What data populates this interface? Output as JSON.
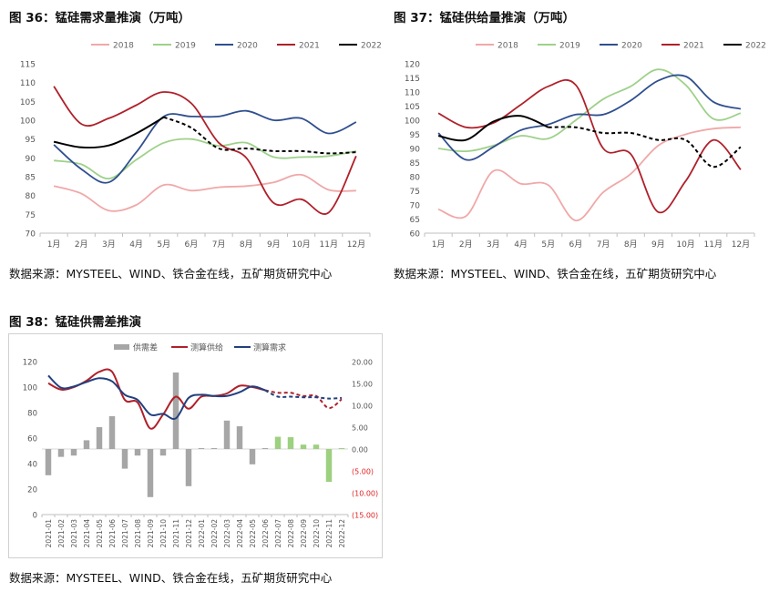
{
  "figures": {
    "fig36": {
      "title": "图 36：锰硅需求量推演（万吨）",
      "source": "数据来源：MYSTEEL、WIND、铁合金在线，五矿期货研究中心"
    },
    "fig37": {
      "title": "图 37：锰硅供给量推演（万吨）",
      "source": "数据来源：MYSTEEL、WIND、铁合金在线，五矿期货研究中心"
    },
    "fig38": {
      "title": "图 38：锰硅供需差推演",
      "source": "数据来源：MYSTEEL、WIND、铁合金在线，五矿期货研究中心"
    }
  },
  "colors": {
    "s2018": "#f0a8a8",
    "s2019": "#9ed18a",
    "s2020": "#2f4f8f",
    "s2021": "#b0202a",
    "s2022": "#000000",
    "bar_gray": "#a6a6a6",
    "bar_green": "#9dd07f",
    "supply": "#b0202a",
    "demand": "#22407f",
    "negative_tick": "#e02020",
    "axis_text": "#555555",
    "axis_line": "#bfbfbf"
  },
  "chart_data": [
    {
      "id": "fig36",
      "type": "line",
      "categories": [
        "1月",
        "2月",
        "3月",
        "4月",
        "5月",
        "6月",
        "7月",
        "8月",
        "9月",
        "10月",
        "11月",
        "12月"
      ],
      "ylim": [
        70,
        115
      ],
      "yticks": [
        70,
        75,
        80,
        85,
        90,
        95,
        100,
        105,
        110,
        115
      ],
      "legend": "top",
      "series": [
        {
          "name": "2018",
          "color_key": "s2018",
          "style": "solid",
          "values": [
            82.5,
            80.5,
            76.0,
            77.5,
            82.8,
            81.3,
            82.2,
            82.5,
            83.5,
            85.5,
            81.5,
            81.3
          ]
        },
        {
          "name": "2019",
          "color_key": "s2019",
          "style": "solid",
          "values": [
            89.3,
            88.3,
            84.5,
            89.5,
            94.0,
            95.0,
            93.2,
            94.0,
            90.2,
            90.2,
            90.5,
            91.8
          ]
        },
        {
          "name": "2020",
          "color_key": "s2020",
          "style": "solid",
          "values": [
            93.5,
            87.0,
            83.5,
            91.5,
            101.0,
            101.0,
            101.0,
            102.5,
            100.0,
            100.5,
            96.5,
            99.5
          ]
        },
        {
          "name": "2021",
          "color_key": "s2021",
          "style": "solid",
          "values": [
            109.0,
            99.0,
            100.5,
            104.0,
            107.5,
            104.5,
            94.0,
            90.0,
            78.0,
            79.0,
            75.5,
            90.5
          ]
        },
        {
          "name": "2022",
          "color_key": "s2022",
          "style": "solid_then_dash",
          "solid_until": 4,
          "values": [
            94.3,
            92.8,
            93.3,
            96.5,
            100.8,
            98.0,
            92.5,
            92.5,
            91.8,
            91.8,
            91.2,
            91.5
          ]
        }
      ]
    },
    {
      "id": "fig37",
      "type": "line",
      "categories": [
        "1月",
        "2月",
        "3月",
        "4月",
        "5月",
        "6月",
        "7月",
        "8月",
        "9月",
        "10月",
        "11月",
        "12月"
      ],
      "ylim": [
        60,
        120
      ],
      "yticks": [
        60,
        65,
        70,
        75,
        80,
        85,
        90,
        95,
        100,
        105,
        110,
        115,
        120
      ],
      "legend": "top",
      "series": [
        {
          "name": "2018",
          "color_key": "s2018",
          "style": "solid",
          "values": [
            68.5,
            66.0,
            82.0,
            77.5,
            77.0,
            64.5,
            74.5,
            81.0,
            91.0,
            95.0,
            97.0,
            97.5
          ]
        },
        {
          "name": "2019",
          "color_key": "s2019",
          "style": "solid",
          "values": [
            90.0,
            89.0,
            91.0,
            94.5,
            93.5,
            100.0,
            107.5,
            112.0,
            118.0,
            112.5,
            100.5,
            102.5
          ]
        },
        {
          "name": "2020",
          "color_key": "s2020",
          "style": "solid",
          "values": [
            95.5,
            86.0,
            90.5,
            96.5,
            98.5,
            102.0,
            102.0,
            107.0,
            114.0,
            115.5,
            106.5,
            104.0
          ]
        },
        {
          "name": "2021",
          "color_key": "s2021",
          "style": "solid",
          "values": [
            102.5,
            97.5,
            99.0,
            105.5,
            112.0,
            112.5,
            90.0,
            88.0,
            67.5,
            78.5,
            93.0,
            82.5
          ]
        },
        {
          "name": "2022",
          "color_key": "s2022",
          "style": "solid_then_dash",
          "solid_until": 4,
          "values": [
            94.5,
            93.0,
            99.5,
            101.5,
            97.5,
            97.5,
            95.5,
            95.5,
            93.0,
            93.0,
            83.5,
            90.5
          ]
        }
      ]
    },
    {
      "id": "fig38",
      "type": "bar",
      "categories": [
        "2021-01",
        "2021-02",
        "2021-03",
        "2021-04",
        "2021-05",
        "2021-06",
        "2021-07",
        "2021-08",
        "2021-09",
        "2021-10",
        "2021-11",
        "2021-12",
        "2022-01",
        "2022-02",
        "2022-03",
        "2022-04",
        "2022-05",
        "2022-06",
        "2022-07",
        "2022-08",
        "2022-09",
        "2022-10",
        "2022-11",
        "2022-12"
      ],
      "ylim_left": [
        0,
        120
      ],
      "yticks_left": [
        0,
        20,
        40,
        60,
        80,
        100,
        120
      ],
      "ylim_right": [
        -15,
        20
      ],
      "yticks_right": [
        {
          "v": -15,
          "label": "(15.00)"
        },
        {
          "v": -10,
          "label": "(10.00)"
        },
        {
          "v": -5,
          "label": "(5.00)"
        },
        {
          "v": 0,
          "label": "0.00"
        },
        {
          "v": 5,
          "label": "5.00"
        },
        {
          "v": 10,
          "label": "10.00"
        },
        {
          "v": 15,
          "label": "15.00"
        },
        {
          "v": 20,
          "label": "20.00"
        }
      ],
      "legend": "top",
      "series": [
        {
          "name": "供需差",
          "kind": "bar",
          "axis": "right",
          "color_key": "bar_gray",
          "projected_color_key": "bar_green",
          "projected_from": 18,
          "values": [
            -6.0,
            -1.8,
            -1.5,
            2.0,
            5.0,
            7.5,
            -4.5,
            -1.5,
            -11.0,
            -1.5,
            17.5,
            -8.5,
            0.2,
            0.2,
            6.5,
            5.2,
            -3.5,
            0.2,
            2.8,
            2.7,
            1.0,
            1.0,
            -7.5,
            0.2
          ]
        },
        {
          "name": "测算供给",
          "kind": "line",
          "axis": "left",
          "color_key": "supply",
          "style": "solid_then_dash",
          "solid_until": 17,
          "values": [
            103,
            98,
            100,
            105,
            112,
            112,
            90,
            88,
            67.5,
            78.5,
            92.5,
            83,
            92.5,
            93,
            95,
            101,
            100,
            97.5,
            95.5,
            95.5,
            93,
            93,
            83.5,
            90.5
          ]
        },
        {
          "name": "测算需求",
          "kind": "line",
          "axis": "left",
          "color_key": "demand",
          "style": "solid_then_dash",
          "solid_until": 17,
          "values": [
            109,
            99.5,
            100.5,
            104,
            107,
            104.5,
            94,
            90,
            78.5,
            79,
            75.5,
            91.5,
            94,
            93,
            93,
            96,
            100.5,
            97.5,
            92.5,
            92.5,
            92,
            92,
            91,
            91.5
          ]
        }
      ]
    }
  ]
}
